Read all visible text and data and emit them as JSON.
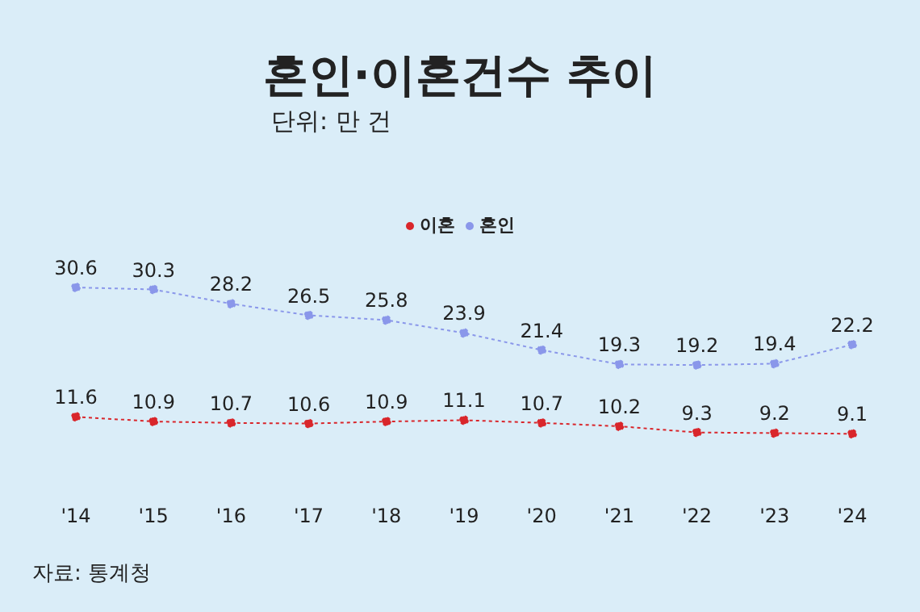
{
  "chart_data": {
    "type": "line",
    "title": "혼인·이혼건수 추이",
    "subtitle": "단위: 만 건",
    "categories": [
      "'14",
      "'15",
      "'16",
      "'17",
      "'18",
      "'19",
      "'20",
      "'21",
      "'22",
      "'23",
      "'24"
    ],
    "series": [
      {
        "name": "이혼",
        "color": "#d9262b",
        "values": [
          11.6,
          10.9,
          10.7,
          10.6,
          10.9,
          11.1,
          10.7,
          10.2,
          9.3,
          9.2,
          9.1
        ]
      },
      {
        "name": "혼인",
        "color": "#8a97ea",
        "values": [
          30.6,
          30.3,
          28.2,
          26.5,
          25.8,
          23.9,
          21.4,
          19.3,
          19.2,
          19.4,
          22.2
        ]
      }
    ],
    "tick_labels": "x",
    "data_labels": true,
    "legend": "top",
    "marker": "circle",
    "line_style": "dotted",
    "annotations": [
      "자료: 통계청"
    ]
  }
}
